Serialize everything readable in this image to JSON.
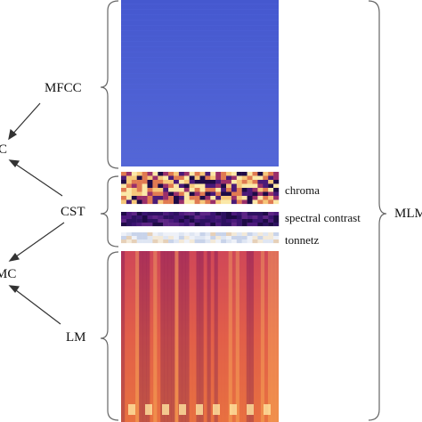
{
  "labels": {
    "mfcc": "MFCC",
    "cst": "CST",
    "lm": "LM",
    "chroma": "chroma",
    "spectral_contrast": "spectral contrast",
    "tonnetz": "tonnetz",
    "mlm": "MLM",
    "c_partial": "C",
    "mc_partial": "MC"
  },
  "colors": {
    "mfcc_panel": "#4a5bd0",
    "chroma_light": "#fbe8a8",
    "chroma_dark": "#2a0f5a",
    "spectral_contrast": "#3a1370",
    "tonnetz": "#dfe6f3",
    "lm_base": "#d04a5a"
  }
}
